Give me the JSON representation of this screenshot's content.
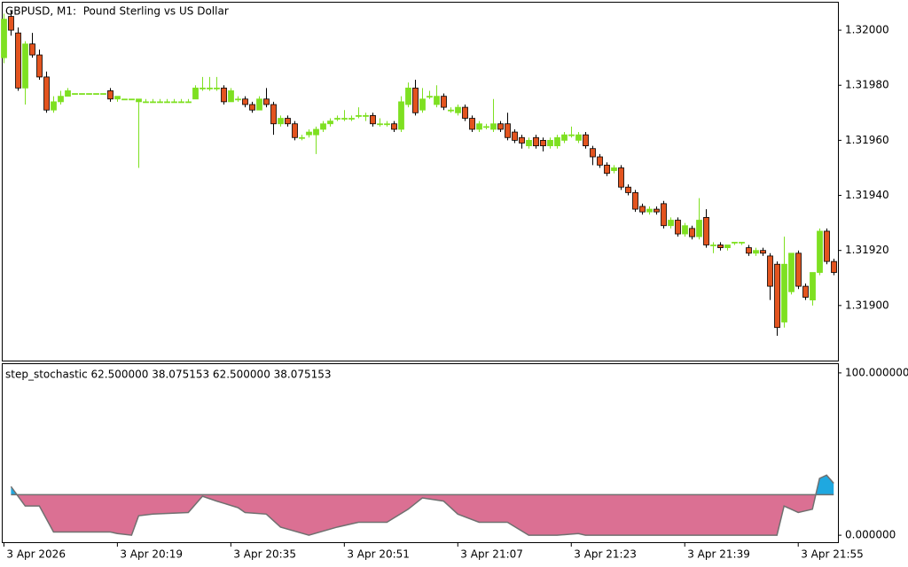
{
  "chart_data": [
    {
      "type": "candlestick",
      "title": "GBPUSD, M1:  Pound Sterling vs US Dollar",
      "up_color": "#7ee021",
      "down_color": "#e3541f",
      "xlim": [
        -0.3,
        117.6
      ],
      "ylim": [
        1.3188,
        1.3201
      ],
      "yticks": [
        {
          "value": 1.32,
          "label": "1.32000"
        },
        {
          "value": 1.3198,
          "label": "1.31980"
        },
        {
          "value": 1.3196,
          "label": "1.31960"
        },
        {
          "value": 1.3194,
          "label": "1.31940"
        },
        {
          "value": 1.3192,
          "label": "1.31920"
        },
        {
          "value": 1.319,
          "label": "1.31900"
        }
      ],
      "open": [
        1.3199,
        1.32005,
        1.31999,
        1.31979,
        1.31995,
        1.31991,
        1.31983,
        1.31971,
        1.31974,
        1.31976,
        1.31977,
        1.31977,
        1.31977,
        1.31977,
        1.31977,
        1.31978,
        1.31975,
        1.31975,
        1.31975,
        1.31974,
        1.31974,
        1.31974,
        1.31974,
        1.31974,
        1.31974,
        1.31974,
        1.31974,
        1.31975,
        1.31979,
        1.31979,
        1.31979,
        1.31979,
        1.31974,
        1.31975,
        1.31975,
        1.31973,
        1.31971,
        1.31975,
        1.31973,
        1.31966,
        1.31968,
        1.31966,
        1.31961,
        1.31962,
        1.31962,
        1.31964,
        1.31966,
        1.31968,
        1.31968,
        1.31968,
        1.31969,
        1.31969,
        1.31969,
        1.31966,
        1.31966,
        1.31966,
        1.31964,
        1.31973,
        1.31979,
        1.31971,
        1.31976,
        1.31973,
        1.31976,
        1.31971,
        1.3197,
        1.31972,
        1.31968,
        1.31964,
        1.31965,
        1.31964,
        1.31966,
        1.31966,
        1.31963,
        1.31961,
        1.31958,
        1.31961,
        1.3196,
        1.31958,
        1.31958,
        1.3196,
        1.31962,
        1.3196,
        1.31962,
        1.31957,
        1.31954,
        1.31951,
        1.31949,
        1.3195,
        1.31943,
        1.31941,
        1.31936,
        1.31934,
        1.31935,
        1.31937,
        1.31929,
        1.31931,
        1.31926,
        1.31928,
        1.31925,
        1.31932,
        1.31922,
        1.31922,
        1.31921,
        1.31923,
        1.31923,
        1.31921,
        1.31919,
        1.3192,
        1.31918,
        1.31915,
        1.31894,
        1.31905,
        1.31919,
        1.31907,
        1.31902,
        1.31912,
        1.31927,
        1.31916
      ],
      "high": [
        1.32006,
        1.32007,
        1.32001,
        1.31996,
        1.31999,
        1.31993,
        1.31985,
        1.31976,
        1.31978,
        1.31979,
        1.31977,
        1.31977,
        1.31977,
        1.31977,
        1.31977,
        1.31979,
        1.31976,
        1.31975,
        1.31975,
        1.31975,
        1.31975,
        1.31975,
        1.31975,
        1.31975,
        1.31975,
        1.31975,
        1.31975,
        1.3198,
        1.31983,
        1.31983,
        1.31983,
        1.3198,
        1.31979,
        1.31976,
        1.31976,
        1.31974,
        1.31976,
        1.31979,
        1.31974,
        1.31969,
        1.31969,
        1.31967,
        1.31962,
        1.31964,
        1.31965,
        1.31967,
        1.31968,
        1.31969,
        1.31971,
        1.31969,
        1.31972,
        1.3197,
        1.3197,
        1.31968,
        1.31967,
        1.31967,
        1.31976,
        1.31981,
        1.31982,
        1.31979,
        1.31978,
        1.3198,
        1.31977,
        1.31972,
        1.31973,
        1.31973,
        1.31969,
        1.31967,
        1.31966,
        1.31975,
        1.31967,
        1.3197,
        1.31964,
        1.31962,
        1.31961,
        1.31962,
        1.31961,
        1.31961,
        1.31962,
        1.31963,
        1.31965,
        1.31963,
        1.31963,
        1.31958,
        1.31955,
        1.31952,
        1.31951,
        1.31951,
        1.31944,
        1.31942,
        1.31937,
        1.31936,
        1.31936,
        1.31938,
        1.31932,
        1.31932,
        1.3193,
        1.31929,
        1.31939,
        1.31935,
        1.31923,
        1.31923,
        1.31922,
        1.31923,
        1.31923,
        1.31922,
        1.31921,
        1.31921,
        1.31919,
        1.31916,
        1.31925,
        1.31919,
        1.3192,
        1.31908,
        1.31912,
        1.31928,
        1.31928,
        1.31917
      ],
      "low": [
        1.31988,
        1.31998,
        1.31978,
        1.31973,
        1.3199,
        1.31982,
        1.3197,
        1.3197,
        1.31973,
        1.31976,
        1.31977,
        1.31977,
        1.31977,
        1.31977,
        1.31977,
        1.31974,
        1.31974,
        1.31975,
        1.31975,
        1.3195,
        1.31974,
        1.31974,
        1.31974,
        1.31974,
        1.31974,
        1.31974,
        1.31974,
        1.31975,
        1.31978,
        1.31978,
        1.31978,
        1.31973,
        1.31974,
        1.31974,
        1.31972,
        1.3197,
        1.31971,
        1.31972,
        1.31962,
        1.31965,
        1.31965,
        1.3196,
        1.3196,
        1.31961,
        1.31955,
        1.31963,
        1.31965,
        1.31967,
        1.31967,
        1.31967,
        1.31968,
        1.31967,
        1.31965,
        1.31965,
        1.31965,
        1.31963,
        1.31963,
        1.31972,
        1.31969,
        1.3197,
        1.31975,
        1.31972,
        1.31971,
        1.3197,
        1.31969,
        1.31967,
        1.31963,
        1.31963,
        1.31964,
        1.31963,
        1.31963,
        1.3196,
        1.31959,
        1.31957,
        1.31957,
        1.31957,
        1.31956,
        1.31957,
        1.31957,
        1.31959,
        1.31961,
        1.31959,
        1.31957,
        1.31951,
        1.3195,
        1.31947,
        1.31948,
        1.31942,
        1.3194,
        1.31934,
        1.31933,
        1.31933,
        1.31933,
        1.31928,
        1.31928,
        1.31925,
        1.31925,
        1.31924,
        1.31924,
        1.31921,
        1.31919,
        1.3192,
        1.3192,
        1.31922,
        1.31922,
        1.31918,
        1.31918,
        1.31918,
        1.31902,
        1.31889,
        1.31892,
        1.31904,
        1.31906,
        1.31902,
        1.319,
        1.31911,
        1.31915,
        1.31911
      ],
      "close": [
        1.32004,
        1.32,
        1.31979,
        1.31995,
        1.31991,
        1.31983,
        1.31971,
        1.31974,
        1.31976,
        1.31978,
        1.31977,
        1.31977,
        1.31977,
        1.31977,
        1.31977,
        1.31975,
        1.31976,
        1.31975,
        1.31975,
        1.31975,
        1.31974,
        1.31974,
        1.31974,
        1.31974,
        1.31974,
        1.31974,
        1.31974,
        1.31979,
        1.31979,
        1.31979,
        1.31979,
        1.31974,
        1.31978,
        1.31975,
        1.31973,
        1.31971,
        1.31975,
        1.31973,
        1.31966,
        1.31968,
        1.31966,
        1.31961,
        1.31961,
        1.31963,
        1.31964,
        1.31966,
        1.31967,
        1.31968,
        1.31968,
        1.31968,
        1.31969,
        1.31969,
        1.31966,
        1.31966,
        1.31966,
        1.31964,
        1.31974,
        1.31979,
        1.3197,
        1.31975,
        1.31976,
        1.31976,
        1.31972,
        1.31971,
        1.31972,
        1.31968,
        1.31964,
        1.31966,
        1.31965,
        1.31966,
        1.31964,
        1.31961,
        1.3196,
        1.31959,
        1.3196,
        1.31958,
        1.31958,
        1.3196,
        1.31961,
        1.31962,
        1.31962,
        1.31962,
        1.31958,
        1.31954,
        1.31951,
        1.31948,
        1.3195,
        1.31943,
        1.31941,
        1.31935,
        1.31934,
        1.31935,
        1.31934,
        1.31929,
        1.31931,
        1.31926,
        1.31929,
        1.31925,
        1.31931,
        1.31922,
        1.31922,
        1.31921,
        1.31922,
        1.31923,
        1.31923,
        1.31919,
        1.3192,
        1.31919,
        1.31907,
        1.31892,
        1.31915,
        1.31919,
        1.31907,
        1.31903,
        1.31912,
        1.31927,
        1.31916,
        1.31912
      ]
    },
    {
      "type": "area",
      "title": "step_stochastic 62.500000 38.075153 62.500000 38.075153",
      "line_color": "#707070",
      "below_color": "#db7093",
      "above_color": "#1fa8e0",
      "level": 25,
      "xlim": [
        -0.3,
        117.6
      ],
      "ylim": [
        -4.3,
        105.4
      ],
      "yticks": [
        {
          "value": 100,
          "label": "100.000000"
        },
        {
          "value": 0,
          "label": "0.000000"
        }
      ],
      "xticks": [
        {
          "value": 0,
          "label": "3 Apr 2026"
        },
        {
          "value": 16,
          "label": "3 Apr 20:19"
        },
        {
          "value": 32,
          "label": "3 Apr 20:35"
        },
        {
          "value": 48,
          "label": "3 Apr 20:51"
        },
        {
          "value": 64,
          "label": "3 Apr 21:07"
        },
        {
          "value": 80,
          "label": "3 Apr 21:23"
        },
        {
          "value": 96,
          "label": "3 Apr 21:39"
        },
        {
          "value": 112,
          "label": "3 Apr 21:55"
        }
      ],
      "x": [
        1,
        3,
        5,
        7,
        15,
        16,
        18,
        19,
        21,
        26,
        28,
        30,
        33,
        34,
        37,
        39,
        43,
        47,
        50,
        54,
        57,
        59,
        62,
        64,
        67,
        71,
        74,
        78,
        81,
        82,
        109,
        110,
        112,
        114,
        115,
        116,
        117
      ],
      "values": [
        30,
        18,
        18,
        2,
        2,
        1,
        0,
        12,
        13,
        14,
        24,
        21,
        17,
        14,
        13,
        5,
        0,
        5,
        8,
        8,
        16,
        23,
        21,
        13,
        8,
        8,
        0,
        0,
        1,
        0,
        0,
        18,
        14,
        16,
        35,
        37,
        32
      ]
    }
  ]
}
